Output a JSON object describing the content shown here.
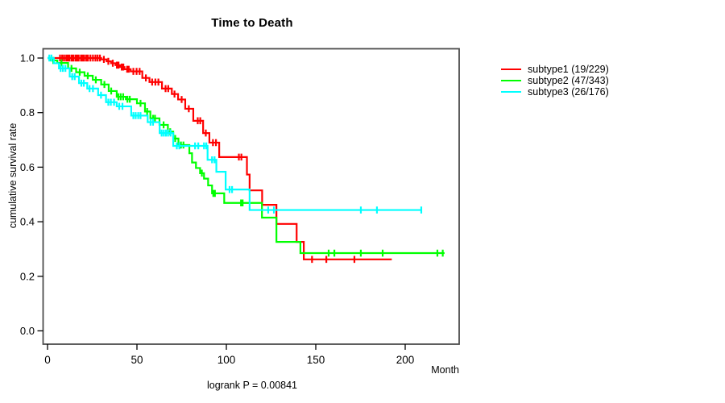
{
  "title": "Time to Death",
  "footnote": "logrank P = 0.00841",
  "chart_data": {
    "type": "line",
    "subtype": "kaplan-meier-step",
    "title": "Time to Death",
    "xlabel": "Month",
    "ylabel": "cumulative survival rate",
    "annotation": "logrank P = 0.00841",
    "xlim": [
      -2.5,
      230
    ],
    "ylim": [
      0.0,
      1.0
    ],
    "grid": false,
    "legend_position": "right",
    "x_ticks": [
      0,
      50,
      100,
      150,
      200
    ],
    "x_tick_labels": [
      "0",
      "50",
      "100",
      "150",
      "200"
    ],
    "y_ticks": [
      0.0,
      0.2,
      0.4,
      0.6,
      0.8,
      1.0
    ],
    "y_tick_labels": [
      "0.0",
      "0.2",
      "0.4",
      "0.6",
      "0.8",
      "1.0"
    ],
    "axis_color": "#000000",
    "box_color": "#4d4d4d",
    "series": [
      {
        "name": "subtype1",
        "label": "subtype1 (19/229)",
        "color": "#ff0000",
        "end": 192.5,
        "points": [
          [
            0,
            1.0
          ],
          [
            30,
            0.995
          ],
          [
            33,
            0.988
          ],
          [
            35.5,
            0.981
          ],
          [
            38,
            0.974
          ],
          [
            40.5,
            0.967
          ],
          [
            43,
            0.959
          ],
          [
            46.5,
            0.951
          ],
          [
            53,
            0.927
          ],
          [
            57,
            0.912
          ],
          [
            64,
            0.888
          ],
          [
            69.5,
            0.868
          ],
          [
            73,
            0.848
          ],
          [
            77,
            0.814
          ],
          [
            81.5,
            0.77
          ],
          [
            87,
            0.725
          ],
          [
            90.5,
            0.69
          ],
          [
            96,
            0.637
          ],
          [
            111.5,
            0.573
          ],
          [
            113,
            0.515
          ],
          [
            120,
            0.462
          ],
          [
            128,
            0.392
          ],
          [
            139.3,
            0.326
          ],
          [
            143.3,
            0.262
          ]
        ],
        "censors": [
          [
            7,
            1.0
          ],
          [
            8.2,
            1.0
          ],
          [
            9.3,
            1.0
          ],
          [
            10.5,
            1.0
          ],
          [
            11.4,
            1.0
          ],
          [
            12.3,
            1.0
          ],
          [
            13.5,
            1.0
          ],
          [
            14.4,
            1.0
          ],
          [
            15.6,
            1.0
          ],
          [
            16.5,
            1.0
          ],
          [
            17.4,
            1.0
          ],
          [
            18.7,
            1.0
          ],
          [
            19.6,
            1.0
          ],
          [
            20.5,
            1.0
          ],
          [
            21.7,
            1.0
          ],
          [
            22.6,
            1.0
          ],
          [
            24,
            1.0
          ],
          [
            25.4,
            1.0
          ],
          [
            26.8,
            1.0
          ],
          [
            28,
            1.0
          ],
          [
            29.3,
            1.0
          ],
          [
            31.5,
            0.995
          ],
          [
            34,
            0.988
          ],
          [
            36.5,
            0.981
          ],
          [
            38.8,
            0.974
          ],
          [
            39.7,
            0.974
          ],
          [
            41.5,
            0.967
          ],
          [
            42.4,
            0.967
          ],
          [
            44.5,
            0.959
          ],
          [
            45.4,
            0.959
          ],
          [
            48,
            0.951
          ],
          [
            49.8,
            0.951
          ],
          [
            51.5,
            0.951
          ],
          [
            55,
            0.927
          ],
          [
            58.5,
            0.912
          ],
          [
            60.3,
            0.912
          ],
          [
            62,
            0.912
          ],
          [
            66,
            0.888
          ],
          [
            67.5,
            0.888
          ],
          [
            71,
            0.868
          ],
          [
            75,
            0.848
          ],
          [
            79,
            0.814
          ],
          [
            84,
            0.77
          ],
          [
            85.4,
            0.77
          ],
          [
            88.5,
            0.725
          ],
          [
            92.5,
            0.69
          ],
          [
            94.2,
            0.69
          ],
          [
            107,
            0.637
          ],
          [
            108.4,
            0.637
          ],
          [
            147.9,
            0.262
          ],
          [
            155.9,
            0.262
          ],
          [
            171.6,
            0.262
          ]
        ]
      },
      {
        "name": "subtype2",
        "label": "subtype2 (47/343)",
        "color": "#00ff00",
        "end": 222,
        "points": [
          [
            0,
            1.0
          ],
          [
            1.9,
            0.991
          ],
          [
            5.5,
            0.982
          ],
          [
            11.5,
            0.962
          ],
          [
            16,
            0.948
          ],
          [
            20.7,
            0.935
          ],
          [
            25.3,
            0.92
          ],
          [
            30,
            0.903
          ],
          [
            34.2,
            0.879
          ],
          [
            38.7,
            0.858
          ],
          [
            43.8,
            0.849
          ],
          [
            50,
            0.834
          ],
          [
            54.5,
            0.804
          ],
          [
            57.5,
            0.779
          ],
          [
            62.6,
            0.755
          ],
          [
            67.3,
            0.73
          ],
          [
            70.3,
            0.705
          ],
          [
            73.2,
            0.681
          ],
          [
            79.3,
            0.651
          ],
          [
            80.8,
            0.617
          ],
          [
            83,
            0.597
          ],
          [
            85.3,
            0.578
          ],
          [
            87.5,
            0.558
          ],
          [
            89.8,
            0.533
          ],
          [
            92,
            0.504
          ],
          [
            98.8,
            0.469
          ],
          [
            119.9,
            0.415
          ],
          [
            128,
            0.326
          ],
          [
            141.4,
            0.285
          ]
        ],
        "censors": [
          [
            3.2,
            0.991
          ],
          [
            7.8,
            0.982
          ],
          [
            13.4,
            0.962
          ],
          [
            18,
            0.948
          ],
          [
            22.5,
            0.935
          ],
          [
            27,
            0.92
          ],
          [
            31.8,
            0.903
          ],
          [
            35.6,
            0.879
          ],
          [
            39.6,
            0.858
          ],
          [
            40.9,
            0.858
          ],
          [
            42.3,
            0.858
          ],
          [
            44.7,
            0.849
          ],
          [
            46,
            0.849
          ],
          [
            52,
            0.834
          ],
          [
            55.7,
            0.804
          ],
          [
            59,
            0.779
          ],
          [
            60.1,
            0.779
          ],
          [
            64.9,
            0.755
          ],
          [
            68.6,
            0.73
          ],
          [
            71.4,
            0.705
          ],
          [
            74.6,
            0.681
          ],
          [
            76,
            0.681
          ],
          [
            86.3,
            0.578
          ],
          [
            92.7,
            0.504
          ],
          [
            93.6,
            0.504
          ],
          [
            108.2,
            0.469
          ],
          [
            109.1,
            0.469
          ],
          [
            157.2,
            0.285
          ],
          [
            160.4,
            0.285
          ],
          [
            175.2,
            0.285
          ],
          [
            187.4,
            0.285
          ],
          [
            218,
            0.285
          ],
          [
            221,
            0.285
          ]
        ]
      },
      {
        "name": "subtype3",
        "label": "subtype3 (26/176)",
        "color": "#00ffff",
        "end": 209,
        "points": [
          [
            0,
            1.0
          ],
          [
            3.5,
            0.981
          ],
          [
            6.4,
            0.962
          ],
          [
            12.4,
            0.932
          ],
          [
            17.6,
            0.908
          ],
          [
            22.2,
            0.888
          ],
          [
            28.3,
            0.864
          ],
          [
            32.7,
            0.838
          ],
          [
            38.7,
            0.823
          ],
          [
            46.8,
            0.789
          ],
          [
            56,
            0.765
          ],
          [
            62.7,
            0.725
          ],
          [
            70.3,
            0.678
          ],
          [
            89.5,
            0.627
          ],
          [
            94.4,
            0.583
          ],
          [
            99.6,
            0.518
          ],
          [
            113,
            0.443
          ]
        ],
        "censors": [
          [
            1,
            1.0
          ],
          [
            2.2,
            1.0
          ],
          [
            7.3,
            0.962
          ],
          [
            8.6,
            0.962
          ],
          [
            10,
            0.962
          ],
          [
            13.8,
            0.932
          ],
          [
            15.2,
            0.932
          ],
          [
            18.9,
            0.908
          ],
          [
            20.3,
            0.908
          ],
          [
            23.5,
            0.888
          ],
          [
            25.4,
            0.888
          ],
          [
            29.9,
            0.864
          ],
          [
            34,
            0.838
          ],
          [
            35.4,
            0.838
          ],
          [
            37.2,
            0.838
          ],
          [
            40.1,
            0.823
          ],
          [
            41.9,
            0.823
          ],
          [
            48,
            0.789
          ],
          [
            49.3,
            0.789
          ],
          [
            50.7,
            0.789
          ],
          [
            52,
            0.789
          ],
          [
            57.6,
            0.765
          ],
          [
            59,
            0.765
          ],
          [
            63.8,
            0.725
          ],
          [
            65,
            0.725
          ],
          [
            66.2,
            0.725
          ],
          [
            67.4,
            0.725
          ],
          [
            68.8,
            0.725
          ],
          [
            72.3,
            0.678
          ],
          [
            73.7,
            0.678
          ],
          [
            82.5,
            0.678
          ],
          [
            84.3,
            0.678
          ],
          [
            87.5,
            0.678
          ],
          [
            88.8,
            0.678
          ],
          [
            92,
            0.627
          ],
          [
            93.4,
            0.627
          ],
          [
            101.8,
            0.518
          ],
          [
            103.2,
            0.518
          ],
          [
            123.4,
            0.443
          ],
          [
            126.6,
            0.443
          ],
          [
            175.2,
            0.443
          ],
          [
            184.2,
            0.443
          ],
          [
            209,
            0.443
          ]
        ]
      }
    ]
  }
}
